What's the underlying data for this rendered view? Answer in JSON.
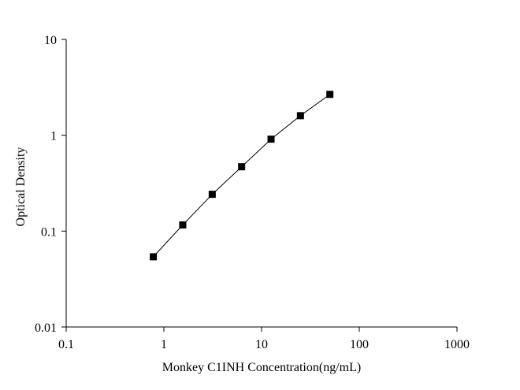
{
  "chart_data": {
    "type": "line",
    "x_label": "Monkey C1INH Concentration(ng/mL)",
    "y_label": "Optical Density",
    "x": [
      0.78,
      1.56,
      3.125,
      6.25,
      12.5,
      25,
      50
    ],
    "series": [
      {
        "color": "#000000",
        "values": [
          0.054,
          0.116,
          0.242,
          0.469,
          0.91,
          1.6,
          2.67
        ]
      }
    ],
    "xlim": [
      0.1,
      1000
    ],
    "xticks": [
      0.1,
      1,
      10,
      100,
      1000
    ],
    "ylim": [
      0.01,
      10
    ],
    "yticks": [
      0.01,
      0.1,
      1,
      10
    ],
    "xscale": "log",
    "yscale": "log",
    "grid": false
  }
}
